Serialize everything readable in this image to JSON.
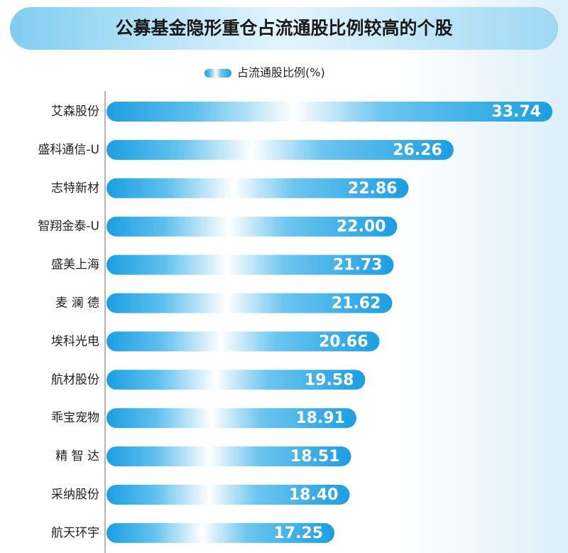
{
  "chart_data": {
    "type": "bar",
    "orientation": "horizontal",
    "title": "公募基金隐形重仓占流通股比例较高的个股",
    "categories": [
      "艾森股份",
      "盛科通信-U",
      "志特新材",
      "智翔金泰-U",
      "盛美上海",
      "麦 澜 德",
      "埃科光电",
      "航材股份",
      "乖宝宠物",
      "精 智 达",
      "采纳股份",
      "航天环宇"
    ],
    "series": [
      {
        "name": "占流通股比例(%)",
        "color": "#2aa7e6",
        "values": [
          33.74,
          26.26,
          22.86,
          22.0,
          21.73,
          21.62,
          20.66,
          19.58,
          18.91,
          18.51,
          18.4,
          17.25
        ],
        "value_labels": [
          "33.74",
          "26.26",
          "22.86",
          "22.00",
          "21.73",
          "21.62",
          "20.66",
          "19.58",
          "18.91",
          "18.51",
          "18.40",
          "17.25"
        ]
      }
    ]
  }
}
